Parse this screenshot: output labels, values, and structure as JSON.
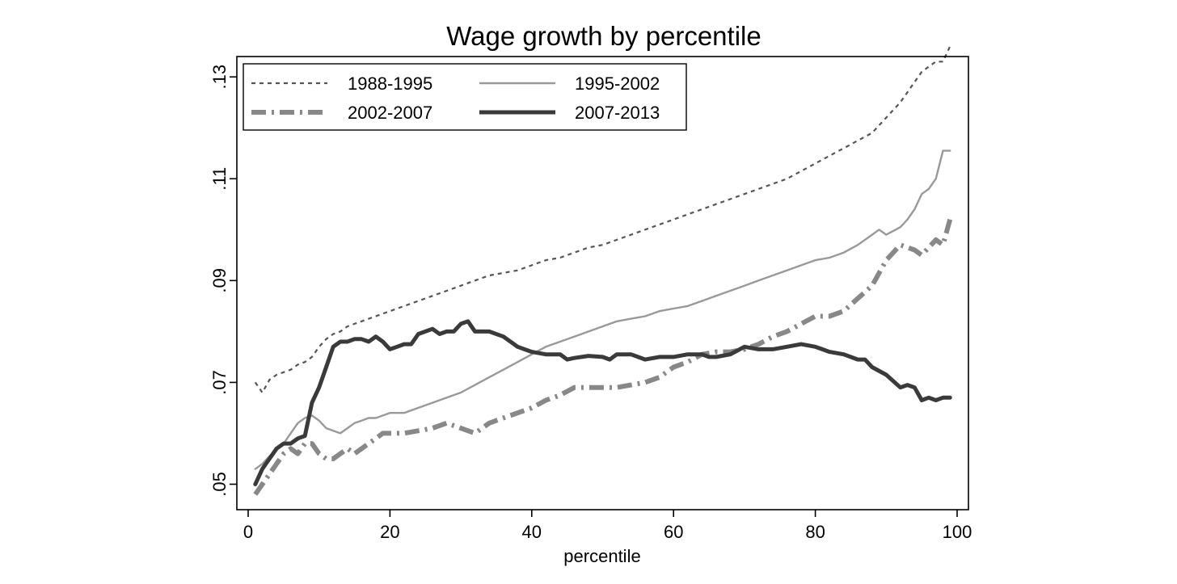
{
  "chart_data": {
    "type": "line",
    "title": "Wage growth by percentile",
    "xlabel": "percentile",
    "ylabel": "",
    "xlim": [
      0,
      100
    ],
    "ylim": [
      0.045,
      0.134
    ],
    "x_ticks": [
      0,
      20,
      40,
      60,
      80,
      100
    ],
    "x_tick_labels": [
      "0",
      "20",
      "40",
      "60",
      "80",
      "100"
    ],
    "y_ticks": [
      0.05,
      0.07,
      0.09,
      0.11,
      0.13
    ],
    "y_tick_labels": [
      ".05",
      ".07",
      ".09",
      ".11",
      ".13"
    ],
    "grid": false,
    "legend_position": "top-left",
    "series": [
      {
        "name": "1988-1995",
        "style": "short-dash",
        "color": "#555555",
        "points": [
          [
            1,
            0.07
          ],
          [
            2,
            0.068
          ],
          [
            3,
            0.0705
          ],
          [
            4,
            0.0715
          ],
          [
            5,
            0.072
          ],
          [
            6,
            0.0725
          ],
          [
            7,
            0.0735
          ],
          [
            8,
            0.074
          ],
          [
            9,
            0.075
          ],
          [
            10,
            0.077
          ],
          [
            11,
            0.0785
          ],
          [
            12,
            0.0795
          ],
          [
            13,
            0.08
          ],
          [
            14,
            0.081
          ],
          [
            15,
            0.0815
          ],
          [
            16,
            0.082
          ],
          [
            17,
            0.0825
          ],
          [
            18,
            0.083
          ],
          [
            19,
            0.0835
          ],
          [
            20,
            0.084
          ],
          [
            22,
            0.085
          ],
          [
            24,
            0.086
          ],
          [
            26,
            0.087
          ],
          [
            28,
            0.088
          ],
          [
            30,
            0.089
          ],
          [
            32,
            0.09
          ],
          [
            34,
            0.091
          ],
          [
            36,
            0.0915
          ],
          [
            38,
            0.092
          ],
          [
            40,
            0.093
          ],
          [
            42,
            0.094
          ],
          [
            44,
            0.0945
          ],
          [
            46,
            0.0955
          ],
          [
            48,
            0.0965
          ],
          [
            50,
            0.097
          ],
          [
            52,
            0.098
          ],
          [
            54,
            0.099
          ],
          [
            56,
            0.1
          ],
          [
            58,
            0.101
          ],
          [
            60,
            0.102
          ],
          [
            62,
            0.103
          ],
          [
            64,
            0.104
          ],
          [
            66,
            0.105
          ],
          [
            68,
            0.106
          ],
          [
            70,
            0.107
          ],
          [
            72,
            0.108
          ],
          [
            74,
            0.109
          ],
          [
            76,
            0.11
          ],
          [
            78,
            0.1115
          ],
          [
            80,
            0.113
          ],
          [
            82,
            0.1145
          ],
          [
            84,
            0.116
          ],
          [
            86,
            0.1175
          ],
          [
            88,
            0.119
          ],
          [
            90,
            0.122
          ],
          [
            92,
            0.125
          ],
          [
            94,
            0.129
          ],
          [
            95,
            0.131
          ],
          [
            96,
            0.132
          ],
          [
            97,
            0.133
          ],
          [
            98,
            0.133
          ],
          [
            99,
            0.136
          ]
        ]
      },
      {
        "name": "1995-2002",
        "style": "solid-thin",
        "color": "#999999",
        "points": [
          [
            1,
            0.053
          ],
          [
            2,
            0.054
          ],
          [
            3,
            0.0555
          ],
          [
            4,
            0.057
          ],
          [
            5,
            0.058
          ],
          [
            6,
            0.06
          ],
          [
            7,
            0.062
          ],
          [
            8,
            0.063
          ],
          [
            9,
            0.0635
          ],
          [
            10,
            0.0625
          ],
          [
            11,
            0.061
          ],
          [
            12,
            0.0605
          ],
          [
            13,
            0.06
          ],
          [
            14,
            0.061
          ],
          [
            15,
            0.062
          ],
          [
            16,
            0.0625
          ],
          [
            17,
            0.063
          ],
          [
            18,
            0.063
          ],
          [
            19,
            0.0635
          ],
          [
            20,
            0.064
          ],
          [
            22,
            0.064
          ],
          [
            24,
            0.065
          ],
          [
            26,
            0.066
          ],
          [
            28,
            0.067
          ],
          [
            30,
            0.068
          ],
          [
            32,
            0.0695
          ],
          [
            34,
            0.071
          ],
          [
            36,
            0.0725
          ],
          [
            38,
            0.074
          ],
          [
            40,
            0.0755
          ],
          [
            42,
            0.077
          ],
          [
            44,
            0.078
          ],
          [
            46,
            0.079
          ],
          [
            48,
            0.08
          ],
          [
            50,
            0.081
          ],
          [
            52,
            0.082
          ],
          [
            54,
            0.0825
          ],
          [
            56,
            0.083
          ],
          [
            58,
            0.084
          ],
          [
            60,
            0.0845
          ],
          [
            62,
            0.085
          ],
          [
            64,
            0.086
          ],
          [
            66,
            0.087
          ],
          [
            68,
            0.088
          ],
          [
            70,
            0.089
          ],
          [
            72,
            0.09
          ],
          [
            74,
            0.091
          ],
          [
            76,
            0.092
          ],
          [
            78,
            0.093
          ],
          [
            80,
            0.094
          ],
          [
            82,
            0.0945
          ],
          [
            84,
            0.0955
          ],
          [
            86,
            0.097
          ],
          [
            88,
            0.099
          ],
          [
            89,
            0.1
          ],
          [
            90,
            0.099
          ],
          [
            92,
            0.1005
          ],
          [
            93,
            0.102
          ],
          [
            94,
            0.104
          ],
          [
            95,
            0.107
          ],
          [
            96,
            0.108
          ],
          [
            97,
            0.11
          ],
          [
            98,
            0.1155
          ],
          [
            99,
            0.1155
          ]
        ]
      },
      {
        "name": "2002-2007",
        "style": "dash-dot-thick",
        "color": "#888888",
        "points": [
          [
            1,
            0.048
          ],
          [
            2,
            0.05
          ],
          [
            3,
            0.052
          ],
          [
            4,
            0.054
          ],
          [
            5,
            0.056
          ],
          [
            6,
            0.057
          ],
          [
            7,
            0.056
          ],
          [
            8,
            0.058
          ],
          [
            9,
            0.058
          ],
          [
            10,
            0.056
          ],
          [
            11,
            0.055
          ],
          [
            12,
            0.055
          ],
          [
            13,
            0.056
          ],
          [
            14,
            0.057
          ],
          [
            15,
            0.056
          ],
          [
            16,
            0.057
          ],
          [
            17,
            0.058
          ],
          [
            18,
            0.059
          ],
          [
            19,
            0.06
          ],
          [
            20,
            0.06
          ],
          [
            22,
            0.06
          ],
          [
            24,
            0.0605
          ],
          [
            26,
            0.061
          ],
          [
            28,
            0.062
          ],
          [
            30,
            0.061
          ],
          [
            32,
            0.06
          ],
          [
            34,
            0.062
          ],
          [
            36,
            0.063
          ],
          [
            38,
            0.064
          ],
          [
            40,
            0.065
          ],
          [
            42,
            0.0665
          ],
          [
            44,
            0.0675
          ],
          [
            46,
            0.069
          ],
          [
            48,
            0.069
          ],
          [
            50,
            0.069
          ],
          [
            52,
            0.069
          ],
          [
            54,
            0.0695
          ],
          [
            56,
            0.07
          ],
          [
            58,
            0.071
          ],
          [
            60,
            0.073
          ],
          [
            62,
            0.074
          ],
          [
            64,
            0.0755
          ],
          [
            66,
            0.076
          ],
          [
            68,
            0.076
          ],
          [
            70,
            0.0765
          ],
          [
            72,
            0.0775
          ],
          [
            74,
            0.079
          ],
          [
            76,
            0.08
          ],
          [
            78,
            0.0815
          ],
          [
            80,
            0.083
          ],
          [
            82,
            0.083
          ],
          [
            84,
            0.084
          ],
          [
            86,
            0.0865
          ],
          [
            88,
            0.089
          ],
          [
            90,
            0.094
          ],
          [
            92,
            0.097
          ],
          [
            94,
            0.096
          ],
          [
            95,
            0.095
          ],
          [
            96,
            0.0965
          ],
          [
            97,
            0.098
          ],
          [
            98,
            0.097
          ],
          [
            99,
            0.102
          ]
        ]
      },
      {
        "name": "2007-2013",
        "style": "solid-thick",
        "color": "#3a3a3a",
        "points": [
          [
            1,
            0.05
          ],
          [
            2,
            0.053
          ],
          [
            3,
            0.055
          ],
          [
            4,
            0.057
          ],
          [
            5,
            0.058
          ],
          [
            6,
            0.058
          ],
          [
            7,
            0.059
          ],
          [
            8,
            0.0595
          ],
          [
            9,
            0.066
          ],
          [
            10,
            0.069
          ],
          [
            11,
            0.073
          ],
          [
            12,
            0.077
          ],
          [
            13,
            0.078
          ],
          [
            14,
            0.078
          ],
          [
            15,
            0.0785
          ],
          [
            16,
            0.0785
          ],
          [
            17,
            0.078
          ],
          [
            18,
            0.079
          ],
          [
            19,
            0.078
          ],
          [
            20,
            0.0765
          ],
          [
            21,
            0.077
          ],
          [
            22,
            0.0775
          ],
          [
            23,
            0.0775
          ],
          [
            24,
            0.0795
          ],
          [
            26,
            0.0805
          ],
          [
            27,
            0.0795
          ],
          [
            28,
            0.08
          ],
          [
            29,
            0.08
          ],
          [
            30,
            0.0815
          ],
          [
            31,
            0.082
          ],
          [
            32,
            0.08
          ],
          [
            34,
            0.08
          ],
          [
            36,
            0.079
          ],
          [
            38,
            0.077
          ],
          [
            40,
            0.076
          ],
          [
            42,
            0.0755
          ],
          [
            44,
            0.0755
          ],
          [
            45,
            0.0745
          ],
          [
            46,
            0.0748
          ],
          [
            48,
            0.0752
          ],
          [
            50,
            0.075
          ],
          [
            51,
            0.0745
          ],
          [
            52,
            0.0755
          ],
          [
            54,
            0.0755
          ],
          [
            56,
            0.0745
          ],
          [
            58,
            0.075
          ],
          [
            60,
            0.075
          ],
          [
            62,
            0.0755
          ],
          [
            64,
            0.0755
          ],
          [
            65,
            0.075
          ],
          [
            66,
            0.075
          ],
          [
            68,
            0.0755
          ],
          [
            70,
            0.077
          ],
          [
            72,
            0.0765
          ],
          [
            74,
            0.0765
          ],
          [
            76,
            0.077
          ],
          [
            78,
            0.0775
          ],
          [
            80,
            0.077
          ],
          [
            82,
            0.076
          ],
          [
            84,
            0.0755
          ],
          [
            86,
            0.0745
          ],
          [
            87,
            0.0745
          ],
          [
            88,
            0.073
          ],
          [
            90,
            0.0715
          ],
          [
            92,
            0.069
          ],
          [
            93,
            0.0695
          ],
          [
            94,
            0.069
          ],
          [
            95,
            0.0665
          ],
          [
            96,
            0.067
          ],
          [
            97,
            0.0665
          ],
          [
            98,
            0.067
          ],
          [
            99,
            0.067
          ]
        ]
      }
    ]
  }
}
